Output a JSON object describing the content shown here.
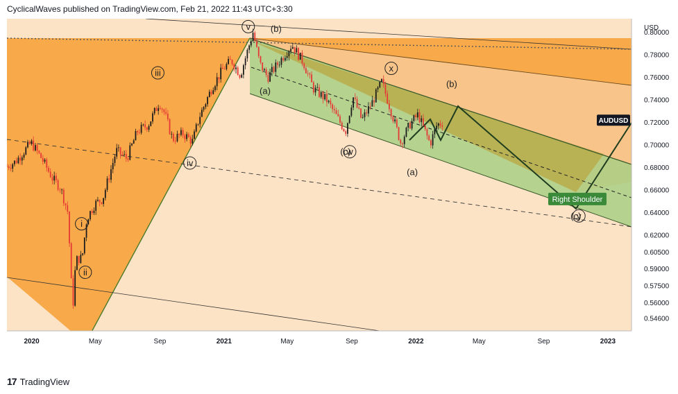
{
  "header": {
    "text": "CyclicalWaves published on TradingView.com, Feb 21, 2022 11:43 UTC+3:30"
  },
  "brand": {
    "logo": "17",
    "name": "TradingView"
  },
  "chart_data": {
    "type": "candlestick",
    "symbol_label": "AUDUSD",
    "currency": "USD",
    "y_axis": {
      "range": [
        0.535,
        0.812
      ],
      "ticks": [
        "0.80000",
        "0.78000",
        "0.76000",
        "0.74000",
        "0.72000",
        "0.70000",
        "0.68000",
        "0.66000",
        "0.64000",
        "0.62000",
        "0.60500",
        "0.59000",
        "0.57500",
        "0.56000",
        "0.54600"
      ],
      "tick_values": [
        0.8,
        0.78,
        0.76,
        0.74,
        0.72,
        0.7,
        0.68,
        0.66,
        0.64,
        0.62,
        0.605,
        0.59,
        0.575,
        0.56,
        0.546
      ]
    },
    "x_axis": {
      "range": [
        "2019-11-15",
        "2023-02-15"
      ],
      "ticks": [
        {
          "label": "2020",
          "date": "2020-01-01",
          "bold": true
        },
        {
          "label": "May",
          "date": "2020-05-01",
          "bold": false
        },
        {
          "label": "Sep",
          "date": "2020-09-01",
          "bold": false
        },
        {
          "label": "2021",
          "date": "2021-01-01",
          "bold": true
        },
        {
          "label": "May",
          "date": "2021-05-01",
          "bold": false
        },
        {
          "label": "Sep",
          "date": "2021-09-01",
          "bold": false
        },
        {
          "label": "2022",
          "date": "2022-01-01",
          "bold": true
        },
        {
          "label": "May",
          "date": "2022-05-01",
          "bold": false
        },
        {
          "label": "Sep",
          "date": "2022-09-01",
          "bold": false
        },
        {
          "label": "2023",
          "date": "2023-01-01",
          "bold": true
        }
      ]
    },
    "price_path": [
      [
        "2019-11-15",
        0.681
      ],
      [
        "2019-12-01",
        0.685
      ],
      [
        "2019-12-31",
        0.702
      ],
      [
        "2020-01-20",
        0.688
      ],
      [
        "2020-02-10",
        0.67
      ],
      [
        "2020-02-25",
        0.662
      ],
      [
        "2020-03-10",
        0.64
      ],
      [
        "2020-03-19",
        0.553
      ],
      [
        "2020-03-25",
        0.598
      ],
      [
        "2020-04-06",
        0.6
      ],
      [
        "2020-04-15",
        0.635
      ],
      [
        "2020-05-01",
        0.648
      ],
      [
        "2020-05-15",
        0.652
      ],
      [
        "2020-06-10",
        0.695
      ],
      [
        "2020-06-30",
        0.688
      ],
      [
        "2020-07-20",
        0.712
      ],
      [
        "2020-08-10",
        0.718
      ],
      [
        "2020-08-31",
        0.738
      ],
      [
        "2020-09-10",
        0.728
      ],
      [
        "2020-09-25",
        0.705
      ],
      [
        "2020-10-15",
        0.71
      ],
      [
        "2020-11-02",
        0.703
      ],
      [
        "2020-11-15",
        0.725
      ],
      [
        "2020-12-10",
        0.752
      ],
      [
        "2020-12-31",
        0.768
      ],
      [
        "2021-01-15",
        0.775
      ],
      [
        "2021-02-01",
        0.762
      ],
      [
        "2021-02-25",
        0.8
      ],
      [
        "2021-03-10",
        0.772
      ],
      [
        "2021-03-25",
        0.76
      ],
      [
        "2021-04-10",
        0.77
      ],
      [
        "2021-05-10",
        0.789
      ],
      [
        "2021-06-01",
        0.773
      ],
      [
        "2021-06-20",
        0.75
      ],
      [
        "2021-07-15",
        0.74
      ],
      [
        "2021-08-20",
        0.712
      ],
      [
        "2021-09-03",
        0.743
      ],
      [
        "2021-09-20",
        0.722
      ],
      [
        "2021-10-10",
        0.738
      ],
      [
        "2021-10-28",
        0.756
      ],
      [
        "2021-11-20",
        0.722
      ],
      [
        "2021-12-03",
        0.702
      ],
      [
        "2021-12-20",
        0.718
      ],
      [
        "2022-01-05",
        0.727
      ],
      [
        "2022-01-28",
        0.701
      ],
      [
        "2022-02-10",
        0.718
      ],
      [
        "2022-02-21",
        0.72
      ]
    ],
    "wave_labels": [
      {
        "text": "i",
        "circled": true,
        "date": "2020-04-05",
        "value": 0.63
      },
      {
        "text": "ii",
        "circled": true,
        "date": "2020-04-12",
        "value": 0.587
      },
      {
        "text": "iii",
        "circled": true,
        "date": "2020-08-28",
        "value": 0.764
      },
      {
        "text": "iv",
        "circled": true,
        "date": "2020-10-28",
        "value": 0.684
      },
      {
        "text": "v",
        "circled": true,
        "date": "2021-02-16",
        "value": 0.805
      },
      {
        "text": "(b)",
        "circled": false,
        "date": "2021-04-10",
        "value": 0.803
      },
      {
        "text": "(a)",
        "circled": false,
        "date": "2021-03-20",
        "value": 0.748
      },
      {
        "text": "x",
        "circled": true,
        "date": "2021-11-15",
        "value": 0.768
      },
      {
        "text": "(b)",
        "circled": false,
        "date": "2022-03-10",
        "value": 0.754
      },
      {
        "text": "(c)",
        "circled": false,
        "date": "2021-08-20",
        "value": 0.694
      },
      {
        "text": "w",
        "circled": true,
        "date": "2021-08-28",
        "value": 0.694
      },
      {
        "text": "(a)",
        "circled": false,
        "date": "2021-12-25",
        "value": 0.676
      },
      {
        "text": "(c)",
        "circled": false,
        "date": "2022-11-01",
        "value": 0.637
      },
      {
        "text": "y",
        "circled": true,
        "date": "2022-11-07",
        "value": 0.637
      }
    ],
    "annotation": {
      "text": "Right Shoulder",
      "date": "2022-11-04",
      "value": 0.652,
      "color": "#3a8a3a"
    },
    "symbol_badge": {
      "text": "AUDUSD",
      "value": 0.722
    },
    "colors": {
      "up": "#1c1c1c",
      "down": "#e53935",
      "orange": "#f7a43d",
      "peach": "#fde0c0",
      "green": "#9dc878",
      "olive": "#b8a140",
      "forecast": "#1f3d1f"
    }
  }
}
